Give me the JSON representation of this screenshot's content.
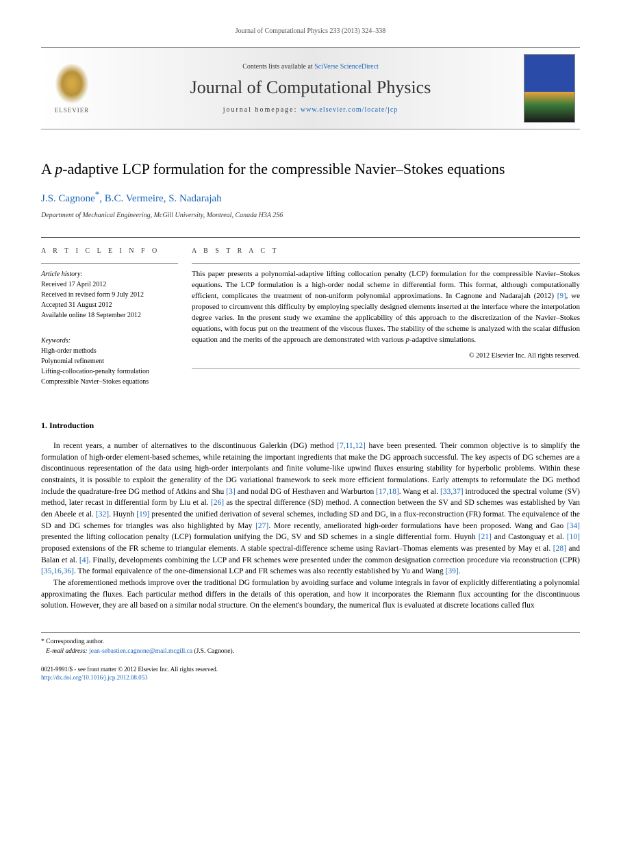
{
  "journal_ref": "Journal of Computational Physics 233 (2013) 324–338",
  "header": {
    "contents_prefix": "Contents lists available at ",
    "contents_link": "SciVerse ScienceDirect",
    "journal_name": "Journal of Computational Physics",
    "homepage_prefix": "journal homepage: ",
    "homepage_url": "www.elsevier.com/locate/jcp",
    "publisher": "ELSEVIER"
  },
  "title_prefix": "A ",
  "title_p": "p",
  "title_rest": "-adaptive LCP formulation for the compressible Navier–Stokes equations",
  "authors": {
    "a1": "J.S. Cagnone",
    "star": "*",
    "a2": ", B.C. Vermeire, S. Nadarajah"
  },
  "affiliation": "Department of Mechanical Engineering, McGill University, Montreal, Canada H3A 2S6",
  "info": {
    "heading": "A R T I C L E   I N F O",
    "history_label": "Article history:",
    "received": "Received 17 April 2012",
    "revised": "Received in revised form 9 July 2012",
    "accepted": "Accepted 31 August 2012",
    "online": "Available online 18 September 2012",
    "keywords_label": "Keywords:",
    "kw1": "High-order methods",
    "kw2": "Polynomial refinement",
    "kw3": "Lifting-collocation-penalty formulation",
    "kw4": "Compressible Navier–Stokes equations"
  },
  "abstract": {
    "heading": "A B S T R A C T",
    "text_1": "This paper presents a polynomial-adaptive lifting collocation penalty (LCP) formulation for the compressible Navier–Stokes equations. The LCP formulation is a high-order nodal scheme in differential form. This format, although computationally efficient, complicates the treatment of non-uniform polynomial approximations. In Cagnone and Nadarajah (2012) ",
    "ref_9": "[9]",
    "text_2": ", we proposed to circumvent this difficulty by employing specially designed elements inserted at the interface where the interpolation degree varies. In the present study we examine the applicability of this approach to the discretization of the Navier–Stokes equations, with focus put on the treatment of the viscous fluxes. The stability of the scheme is analyzed with the scalar diffusion equation and the merits of the approach are demonstrated with various ",
    "p_italic": "p",
    "text_3": "-adaptive simulations.",
    "copyright": "© 2012 Elsevier Inc. All rights reserved."
  },
  "section1_heading": "1. Introduction",
  "para1": {
    "t1": "In recent years, a number of alternatives to the discontinuous Galerkin (DG) method ",
    "r1": "[7,11,12]",
    "t2": " have been presented. Their common objective is to simplify the formulation of high-order element-based schemes, while retaining the important ingredients that make the DG approach successful. The key aspects of DG schemes are a discontinuous representation of the data using high-order interpolants and finite volume-like upwind fluxes ensuring stability for hyperbolic problems. Within these constraints, it is possible to exploit the generality of the DG variational framework to seek more efficient formulations. Early attempts to reformulate the DG method include the quadrature-free DG method of Atkins and Shu ",
    "r2": "[3]",
    "t3": " and nodal DG of Hesthaven and Warburton ",
    "r3": "[17,18]",
    "t4": ". Wang et al. ",
    "r4": "[33,37]",
    "t5": " introduced the spectral volume (SV) method, later recast in differential form by Liu et al. ",
    "r5": "[26]",
    "t6": " as the spectral difference (SD) method. A connection between the SV and SD schemes was established by Van den Abeele et al. ",
    "r6": "[32]",
    "t7": ". Huynh ",
    "r7": "[19]",
    "t8": " presented the unified derivation of several schemes, including SD and DG, in a flux-reconstruction (FR) format. The equivalence of the SD and DG schemes for triangles was also highlighted by May ",
    "r8": "[27]",
    "t9": ". More recently, ameliorated high-order formulations have been proposed. Wang and Gao ",
    "r9": "[34]",
    "t10": " presented the lifting collocation penalty (LCP) formulation unifying the DG, SV and SD schemes in a single differential form. Huynh ",
    "r10": "[21]",
    "t11": " and Castonguay et al. ",
    "r11": "[10]",
    "t12": " proposed extensions of the FR scheme to triangular elements. A stable spectral-difference scheme using Raviart–Thomas elements was presented by May et al. ",
    "r12": "[28]",
    "t13": " and Balan et al. ",
    "r13": "[4]",
    "t14": ". Finally, developments combining the LCP and FR schemes were presented under the common designation correction procedure via reconstruction (CPR) ",
    "r14": "[35,16,36]",
    "t15": ". The formal equivalence of the one-dimensional LCP and FR schemes was also recently established by Yu and Wang ",
    "r15": "[39]",
    "t16": "."
  },
  "para2": "The aforementioned methods improve over the traditional DG formulation by avoiding surface and volume integrals in favor of explicitly differentiating a polynomial approximating the fluxes. Each particular method differs in the details of this operation, and how it incorporates the Riemann flux accounting for the discontinuous solution. However, they are all based on a similar nodal structure. On the element's boundary, the numerical flux is evaluated at discrete locations called flux",
  "footer": {
    "corr_label": "* Corresponding author.",
    "email_label": "E-mail address: ",
    "email": "jean-sebastien.cagnone@mail.mcgill.ca",
    "email_who": " (J.S. Cagnone).",
    "issn": "0021-9991/$ - see front matter © 2012 Elsevier Inc. All rights reserved.",
    "doi": "http://dx.doi.org/10.1016/j.jcp.2012.08.053"
  },
  "colors": {
    "link": "#1864b8",
    "text": "#000000",
    "rule": "#888888"
  }
}
